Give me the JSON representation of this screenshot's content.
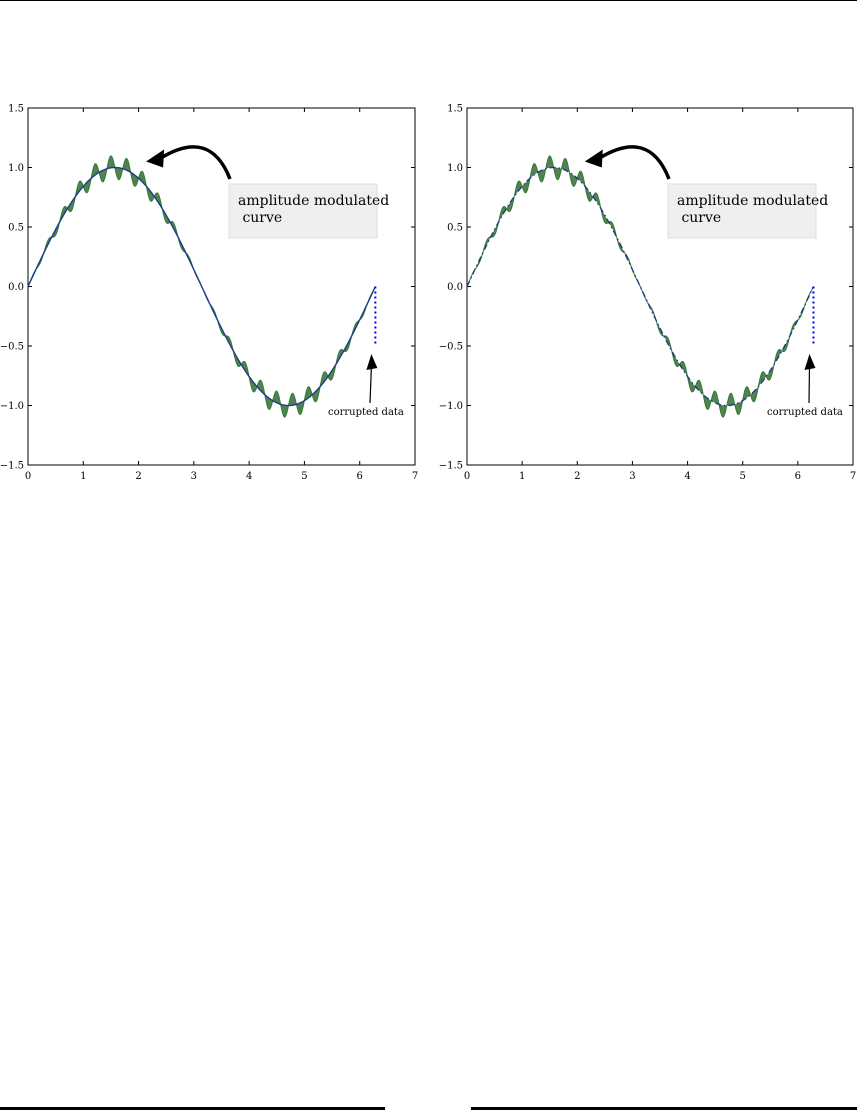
{
  "chart_data": [
    {
      "type": "line",
      "xlim": [
        0,
        7
      ],
      "ylim": [
        -1.5,
        1.5
      ],
      "x_ticks": [
        0,
        1,
        2,
        3,
        4,
        5,
        6,
        7
      ],
      "y_ticks": [
        1.5,
        1.0,
        0.5,
        0.0,
        -0.5,
        -1.0,
        -1.5
      ],
      "x_tick_labels": [
        "0",
        "1",
        "2",
        "3",
        "4",
        "5",
        "6",
        "7"
      ],
      "y_tick_labels": [
        "1.5",
        "1.0",
        "0.5",
        "0.0",
        "−0.5",
        "−1.0",
        "−1.5"
      ],
      "grid": false,
      "series": [
        {
          "values_description_key": "sin",
          "x_range": [
            0,
            6.283
          ],
          "function": "sin(x)",
          "style": "solid",
          "color": "#1f3a8a"
        },
        {
          "function": "sin(x)*(1+0.1*sin(22x))",
          "x_range": [
            0,
            6.283
          ],
          "style": "solid-filled",
          "color": "#2e7d32",
          "fill": "#4a7a4a"
        },
        {
          "function": "corrupted",
          "x": [
            6.283,
            6.283
          ],
          "y": [
            0.0,
            -0.5
          ],
          "style": "dotted",
          "color": "#0000ff"
        }
      ],
      "annotations": [
        {
          "text": "amplitude modulated\n curve",
          "lines": [
            "amplitude modulated",
            " curve"
          ],
          "points_to": [
            2.1,
            1.0
          ],
          "box_color": "#efefef"
        },
        {
          "text": "corrupted data",
          "points_to": [
            6.283,
            -0.55
          ]
        }
      ]
    },
    {
      "type": "line",
      "xlim": [
        0,
        7
      ],
      "ylim": [
        -1.5,
        1.5
      ],
      "x_ticks": [
        0,
        1,
        2,
        3,
        4,
        5,
        6,
        7
      ],
      "y_ticks": [
        1.5,
        1.0,
        0.5,
        0.0,
        -0.5,
        -1.0,
        -1.5
      ],
      "x_tick_labels": [
        "0",
        "1",
        "2",
        "3",
        "4",
        "5",
        "6",
        "7"
      ],
      "y_tick_labels": [
        "1.5",
        "1.0",
        "0.5",
        "0.0",
        "−0.5",
        "−1.0",
        "−1.5"
      ],
      "grid": false,
      "series": [
        {
          "function": "sin(x)",
          "x_range": [
            0,
            6.283
          ],
          "style": "dash-dot",
          "color": "#1f3a8a"
        },
        {
          "function": "sin(x)*(1+0.1*sin(22x))",
          "x_range": [
            0,
            6.283
          ],
          "style": "solid-filled",
          "color": "#2e7d32",
          "fill": "#4a7a4a"
        },
        {
          "function": "corrupted",
          "x": [
            6.283,
            6.283
          ],
          "y": [
            0.0,
            -0.5
          ],
          "style": "dotted",
          "color": "#0000ff"
        }
      ],
      "annotations": [
        {
          "text": "amplitude modulated\n curve",
          "lines": [
            "amplitude modulated",
            " curve"
          ],
          "points_to": [
            2.1,
            1.0
          ],
          "box_color": "#efefef"
        },
        {
          "text": "corrupted data",
          "points_to": [
            6.283,
            -0.55
          ]
        }
      ]
    }
  ]
}
